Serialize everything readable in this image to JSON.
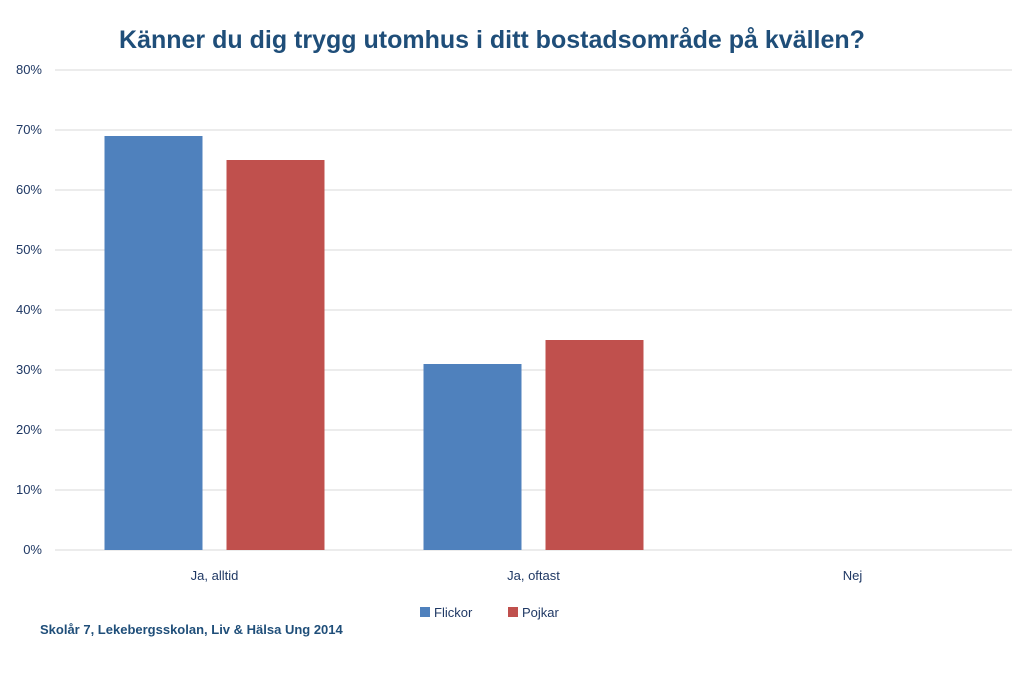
{
  "chart_data": {
    "type": "bar",
    "title": "Känner du dig trygg utomhus i ditt bostadsområde på kvällen?",
    "categories": [
      "Ja, alltid",
      "Ja, oftast",
      "Nej"
    ],
    "series": [
      {
        "name": "Flickor",
        "values": [
          69,
          31,
          0
        ],
        "color": "#4f81bd"
      },
      {
        "name": "Pojkar",
        "values": [
          65,
          35,
          0
        ],
        "color": "#c0504d"
      }
    ],
    "ylim": [
      0,
      80
    ],
    "yticks": [
      "0%",
      "10%",
      "20%",
      "30%",
      "40%",
      "50%",
      "60%",
      "70%",
      "80%"
    ],
    "grid": true,
    "legend": "bottom-center",
    "source": "Skolår 7, Lekebergsskolan, Liv & Hälsa Ung 2014"
  }
}
